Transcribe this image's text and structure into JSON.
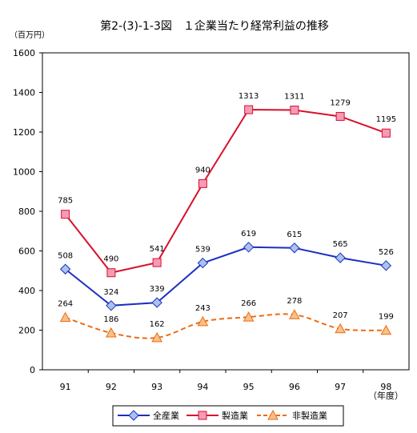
{
  "chart_data": {
    "type": "line",
    "title": "第2-(3)-1-3図　１企業当たり経常利益の推移",
    "ylabel": "（百万円）",
    "xlabel": "（年度）",
    "categories": [
      "91",
      "92",
      "93",
      "94",
      "95",
      "96",
      "97",
      "98"
    ],
    "ylim": [
      0,
      1600
    ],
    "yticks": [
      0,
      200,
      400,
      600,
      800,
      1000,
      1200,
      1400,
      1600
    ],
    "grid": false,
    "legend_position": "bottom",
    "series": [
      {
        "name": "全産業",
        "values": [
          508,
          324,
          339,
          539,
          619,
          615,
          565,
          526
        ],
        "color": "#1c2fbf",
        "marker": "diamond",
        "marker_fill": "#a9c2ee",
        "dash": "solid"
      },
      {
        "name": "製造業",
        "values": [
          785,
          490,
          541,
          940,
          1313,
          1311,
          1279,
          1195
        ],
        "color": "#d8102a",
        "marker": "square",
        "marker_fill": "#f59ab8",
        "dash": "solid"
      },
      {
        "name": "非製造業",
        "values": [
          264,
          186,
          162,
          243,
          266,
          278,
          207,
          199
        ],
        "color": "#ee6a10",
        "marker": "triangle",
        "marker_fill": "#f7c18a",
        "dash": "dashed"
      }
    ]
  }
}
